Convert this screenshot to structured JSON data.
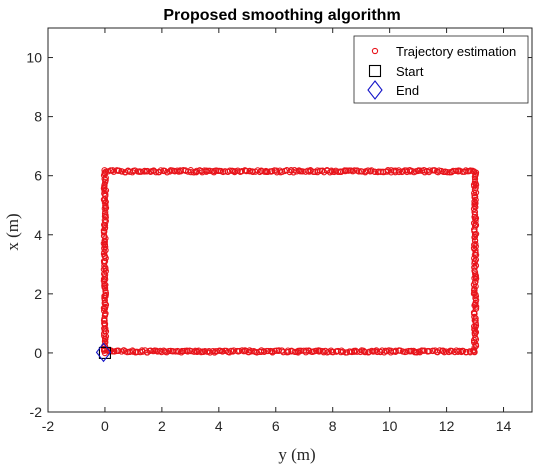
{
  "chart_data": {
    "type": "scatter",
    "title": "Proposed smoothing algorithm",
    "xlabel": "y (m)",
    "ylabel": "x (m)",
    "xlim": [
      -2,
      15
    ],
    "ylim": [
      -2,
      11
    ],
    "xticks": [
      "-2",
      "0",
      "2",
      "4",
      "6",
      "8",
      "10",
      "12",
      "14"
    ],
    "yticks": [
      "-2",
      "0",
      "2",
      "4",
      "6",
      "8",
      "10"
    ],
    "grid": false,
    "legend_position": "top-right",
    "series": [
      {
        "name": "Trajectory estimation",
        "marker": "circle",
        "color": "#e8141b",
        "path": [
          [
            0,
            0
          ],
          [
            0,
            6.15
          ],
          [
            13,
            6.15
          ],
          [
            13,
            0.05
          ],
          [
            0,
            0.05
          ]
        ]
      },
      {
        "name": "Start",
        "marker": "square",
        "color": "#000000",
        "points": [
          [
            0,
            0
          ]
        ]
      },
      {
        "name": "End",
        "marker": "diamond",
        "color": "#1515c8",
        "points": [
          [
            -0.05,
            0.02
          ]
        ]
      }
    ]
  }
}
